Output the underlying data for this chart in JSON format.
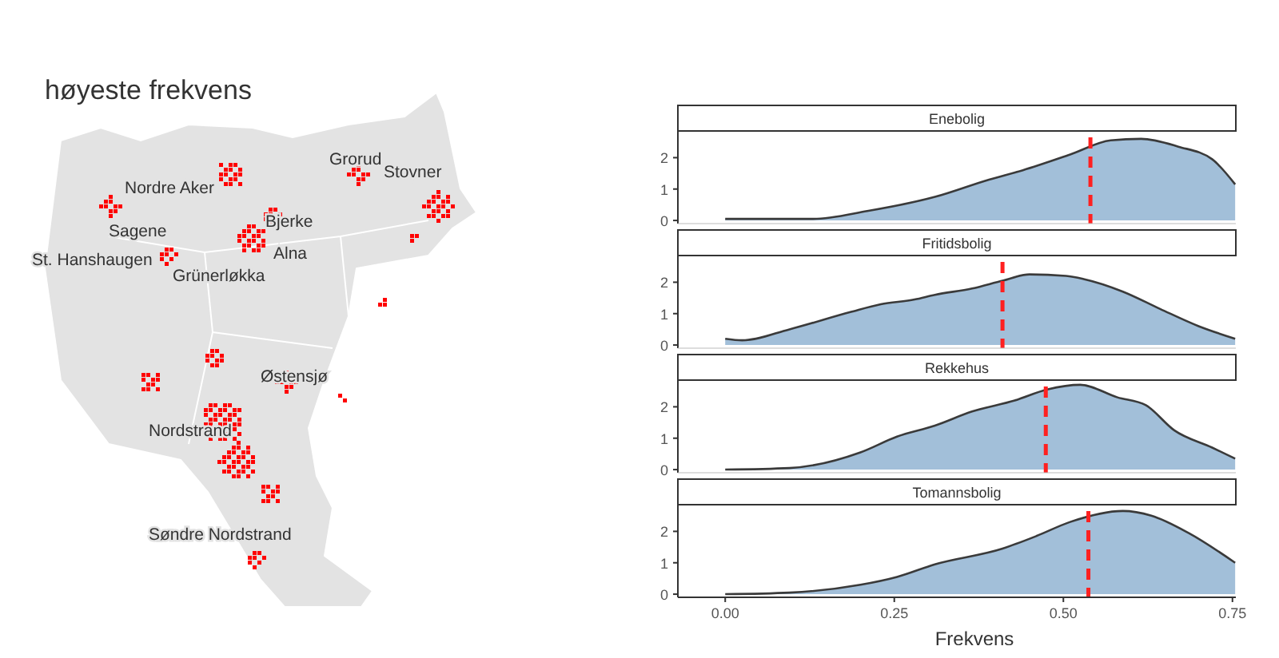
{
  "chart_data": [
    {
      "type": "other",
      "title": "høyeste frekvens",
      "annotations": [
        "Grorud",
        "Stovner",
        "Nordre Aker",
        "Bjerke",
        "Sagene",
        "Alna",
        "St. Hanshaugen",
        "Grünerløkka",
        "Østensjø",
        "Nordstrand",
        "Søndre Nordstrand"
      ]
    },
    {
      "type": "area",
      "title": "Enebolig",
      "x": [
        0,
        0.13,
        0.21,
        0.31,
        0.39,
        0.44,
        0.51,
        0.57,
        0.615,
        0.67,
        0.72,
        0.754
      ],
      "series": [
        {
          "color": "#a2bfd9",
          "values": [
            0.05,
            0.05,
            0.3,
            0.75,
            1.3,
            1.6,
            2.1,
            2.55,
            2.6,
            2.35,
            1.95,
            1.15
          ]
        }
      ],
      "xlim": [
        -0.07,
        0.755
      ],
      "ylim": [
        -0.1,
        2.85
      ],
      "yticks": [
        0,
        1,
        2
      ],
      "tick_labels": "y",
      "ref_lines": [
        {
          "axis": "x",
          "value": 0.54,
          "color": "#ff2020",
          "line_style": "dashed"
        }
      ]
    },
    {
      "type": "area",
      "title": "Fritidsbolig",
      "x": [
        0,
        0.025,
        0.095,
        0.185,
        0.23,
        0.28,
        0.31,
        0.365,
        0.41,
        0.45,
        0.504,
        0.53,
        0.588,
        0.643,
        0.7,
        0.754
      ],
      "series": [
        {
          "color": "#a2bfd9",
          "values": [
            0.2,
            0.15,
            0.5,
            1.05,
            1.3,
            1.45,
            1.6,
            1.8,
            2.05,
            2.25,
            2.2,
            2.1,
            1.7,
            1.15,
            0.6,
            0.2
          ]
        }
      ],
      "xlim": [
        -0.07,
        0.755
      ],
      "ylim": [
        -0.1,
        2.85
      ],
      "yticks": [
        0,
        1,
        2
      ],
      "tick_labels": "y",
      "ref_lines": [
        {
          "axis": "x",
          "value": 0.41,
          "color": "#ff2020",
          "line_style": "dashed"
        }
      ]
    },
    {
      "type": "area",
      "title": "Rekkehus",
      "x": [
        0,
        0.095,
        0.2,
        0.254,
        0.31,
        0.365,
        0.428,
        0.476,
        0.525,
        0.58,
        0.622,
        0.664,
        0.72,
        0.754
      ],
      "series": [
        {
          "color": "#a2bfd9",
          "values": [
            0,
            0.05,
            0.55,
            1.05,
            1.4,
            1.85,
            2.2,
            2.55,
            2.7,
            2.3,
            2.05,
            1.25,
            0.7,
            0.35
          ]
        }
      ],
      "xlim": [
        -0.07,
        0.755
      ],
      "ylim": [
        -0.1,
        2.85
      ],
      "yticks": [
        0,
        1,
        2
      ],
      "tick_labels": "y",
      "ref_lines": [
        {
          "axis": "x",
          "value": 0.474,
          "color": "#ff2020",
          "line_style": "dashed"
        }
      ]
    },
    {
      "type": "area",
      "title": "Tomannsbolig",
      "xlabel": "Frekvens",
      "x": [
        0,
        0.095,
        0.2,
        0.254,
        0.31,
        0.41,
        0.46,
        0.51,
        0.588,
        0.63,
        0.685,
        0.754
      ],
      "series": [
        {
          "color": "#a2bfd9",
          "values": [
            0,
            0.05,
            0.3,
            0.55,
            0.95,
            1.45,
            1.85,
            2.3,
            2.65,
            2.5,
            1.95,
            1.0
          ]
        }
      ],
      "xlim": [
        -0.07,
        0.755
      ],
      "ylim": [
        -0.1,
        2.85
      ],
      "yticks": [
        0,
        1,
        2
      ],
      "xticks": [
        {
          "value": 0,
          "label": "0.00"
        },
        0.25,
        {
          "value": 0.5,
          "label": "0.50"
        },
        0.75
      ],
      "ref_lines": [
        {
          "axis": "x",
          "value": 0.537,
          "color": "#ff2020",
          "line_style": "dashed"
        }
      ]
    }
  ]
}
